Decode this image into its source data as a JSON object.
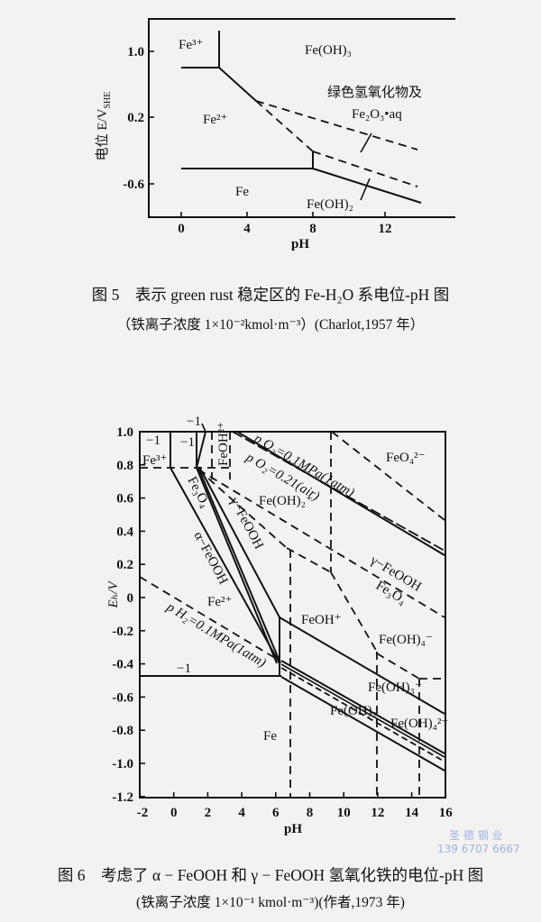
{
  "figure5": {
    "y_axis_title": "电位 E/V",
    "y_axis_title_sub": "SHE",
    "x_axis_title": "pH",
    "x_ticks": [
      "0",
      "4",
      "8",
      "12"
    ],
    "y_ticks": [
      "1.0",
      "0.2",
      "-0.6"
    ],
    "regions": {
      "fe3": "Fe³⁺",
      "feoh3": "Fe(OH)₃",
      "fe2": "Fe²⁺",
      "green": "绿色氢氧化物及",
      "fe2o3": "Fe₂O₃•aq",
      "fe": "Fe",
      "feoh2": "Fe(OH)₂"
    },
    "caption_title": "图 5　表示 green rust 稳定区的 Fe-H₂O 系电位-pH 图",
    "caption_note": "（铁离子浓度 1×10⁻²kmol·m⁻³）(Charlot,1957 年）"
  },
  "figure6": {
    "y_axis_title": "Eₕ/V",
    "x_axis_title": "pH",
    "x_ticks": [
      "-2",
      "0",
      "2",
      "4",
      "6",
      "8",
      "10",
      "12",
      "14",
      "16"
    ],
    "y_ticks": [
      "1.0",
      "0.8",
      "0.6",
      "0.4",
      "0.2",
      "0",
      "-0.2",
      "-0.4",
      "-0.6",
      "-0.8",
      "-1.0",
      "-1.2"
    ],
    "regions": {
      "m1a": "−1",
      "m1b": "−1",
      "m1c": "−1",
      "m1d": "−1",
      "fe3": "Fe³⁺",
      "feoh2p": "FeOH²⁺",
      "po2a": "p O₂=0.1MPa(1atm)",
      "po2b": "p O₂=0.21(air)",
      "feo4": "FeO₄²⁻",
      "feoh2plus": "Fe(OH)₂⁺",
      "fe3o4": "Fe₃O₄",
      "gfeooh": "γ−FeOOH",
      "afeooh": "α−FeOOH",
      "fe2": "Fe²⁺",
      "ph2": "p H₂=0.1MPa(1atm)",
      "gfeooh2": "γ−FeOOH",
      "fe3o4b": "Fe₃O₄",
      "feohp": "FeOH⁺",
      "feoh4m": "Fe(OH)₄⁻",
      "feoh3m": "Fe(OH)₃⁻",
      "feoh2": "Fe(OH)₂",
      "feoh42": "Fe(OH)₄²⁻",
      "fe": "Fe"
    },
    "caption_title": "图 6　考虑了 α − FeOOH 和 γ − FeOOH 氢氧化铁的电位-pH 图",
    "caption_note": "(铁离子浓度 1×10⁻¹ kmol·m⁻³)(作者,1973 年)"
  },
  "watermark": {
    "line1": "圣 德 钢 业",
    "line2": "139 6707 6667",
    "color": "#9db3e6"
  }
}
